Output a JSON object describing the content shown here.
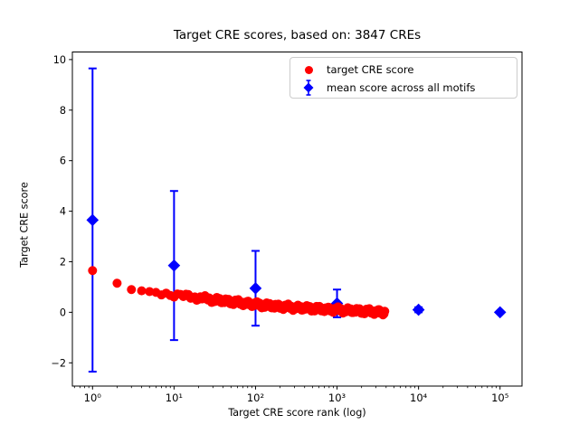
{
  "chart_data": {
    "type": "scatter",
    "title": "Target CRE scores, based on: 3847 CREs",
    "xlabel": "Target CRE score rank (log)",
    "ylabel": "Target CRE score",
    "x_scale": "log",
    "y_scale": "linear",
    "grid": false,
    "xlim_log10": [
      -0.2475,
      5.2695
    ],
    "ylim": [
      -2.92,
      10.3
    ],
    "x_major_ticks": [
      {
        "value": 1,
        "label": "10⁰"
      },
      {
        "value": 10,
        "label": "10¹"
      },
      {
        "value": 100,
        "label": "10²"
      },
      {
        "value": 1000,
        "label": "10³"
      },
      {
        "value": 10000,
        "label": "10⁴"
      },
      {
        "value": 100000,
        "label": "10⁵"
      }
    ],
    "y_major_ticks": [
      {
        "value": -2,
        "label": "−2"
      },
      {
        "value": 0,
        "label": "0"
      },
      {
        "value": 2,
        "label": "2"
      },
      {
        "value": 4,
        "label": "4"
      },
      {
        "value": 6,
        "label": "6"
      },
      {
        "value": 8,
        "label": "8"
      },
      {
        "value": 10,
        "label": "10"
      }
    ],
    "legend_position": "upper right inside axes",
    "series": [
      {
        "name": "target CRE score",
        "marker": "circle",
        "color": "#ff0000",
        "description": "dense monotonically decreasing band of ~3847 points, ranks 1..3847",
        "curve_anchors_rank_score": [
          [
            1,
            1.65
          ],
          [
            2,
            1.15
          ],
          [
            3,
            0.9
          ],
          [
            4,
            0.85
          ],
          [
            5,
            0.82
          ],
          [
            7,
            0.76
          ],
          [
            10,
            0.7
          ],
          [
            15,
            0.62
          ],
          [
            20,
            0.57
          ],
          [
            30,
            0.5
          ],
          [
            50,
            0.42
          ],
          [
            70,
            0.37
          ],
          [
            100,
            0.31
          ],
          [
            150,
            0.26
          ],
          [
            200,
            0.23
          ],
          [
            300,
            0.19
          ],
          [
            500,
            0.15
          ],
          [
            700,
            0.12
          ],
          [
            1000,
            0.1
          ],
          [
            1500,
            0.07
          ],
          [
            2000,
            0.05
          ],
          [
            3000,
            0.02
          ],
          [
            3847,
            0.0
          ]
        ]
      },
      {
        "name": "mean score across all motifs",
        "marker": "diamond",
        "color": "#0000ff",
        "error_bars": true,
        "points": [
          {
            "rank": 1,
            "mean": 3.65,
            "err": 6.0
          },
          {
            "rank": 10,
            "mean": 1.85,
            "err": 2.95
          },
          {
            "rank": 100,
            "mean": 0.95,
            "err": 1.48
          },
          {
            "rank": 1000,
            "mean": 0.35,
            "err": 0.55
          },
          {
            "rank": 10000,
            "mean": 0.1,
            "err": 0.1
          },
          {
            "rank": 100000,
            "mean": 0.0,
            "err": 0.03
          }
        ]
      }
    ],
    "axis_color": "#000000",
    "background_color": "#ffffff"
  }
}
